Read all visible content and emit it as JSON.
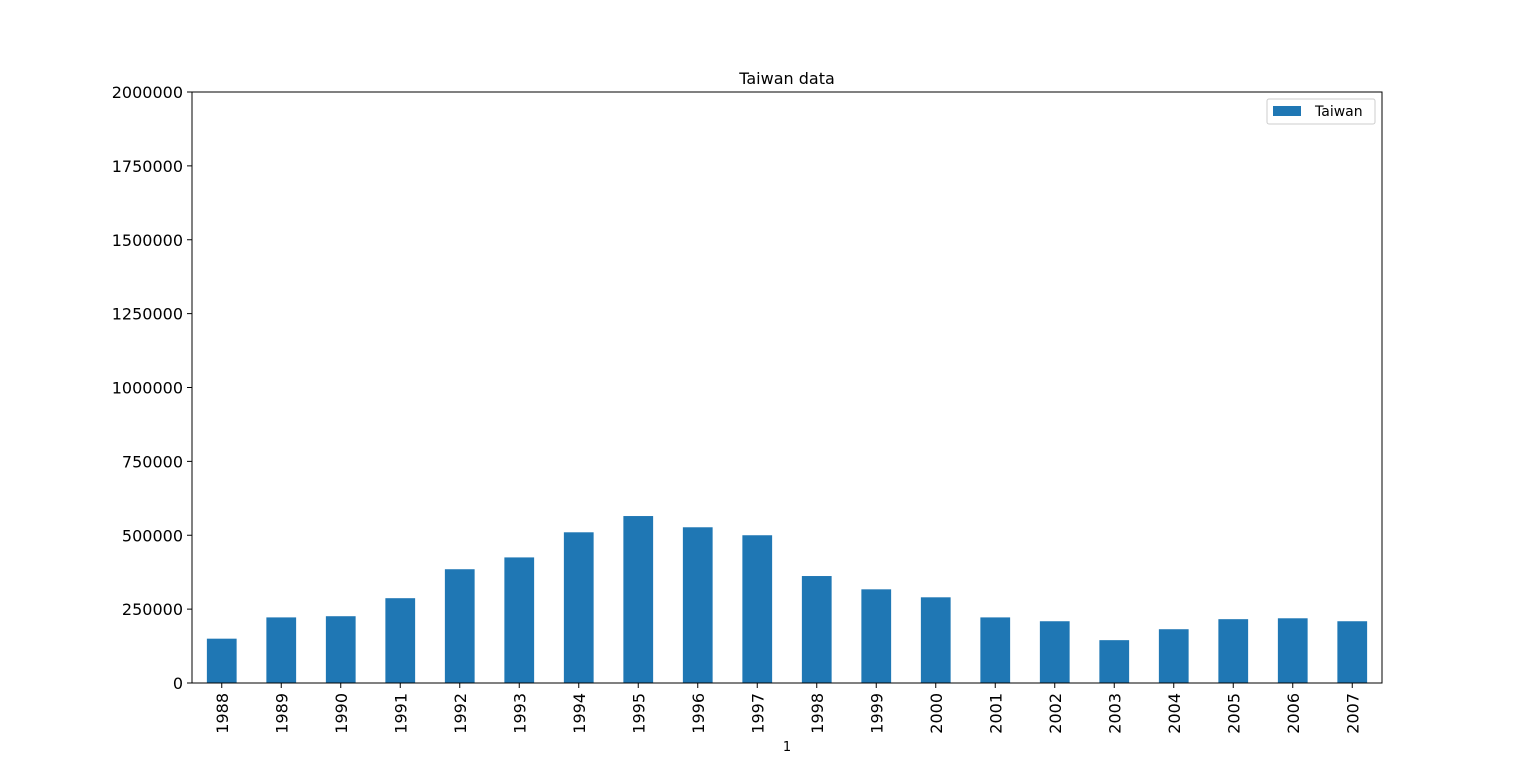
{
  "chart_data": {
    "type": "bar",
    "title": "Taiwan data",
    "xlabel": "1",
    "ylabel": "",
    "categories": [
      "1988",
      "1989",
      "1990",
      "1991",
      "1992",
      "1993",
      "1994",
      "1995",
      "1996",
      "1997",
      "1998",
      "1999",
      "2000",
      "2001",
      "2002",
      "2003",
      "2004",
      "2005",
      "2006",
      "2007"
    ],
    "series": [
      {
        "name": "Taiwan",
        "color": "#1f77b4",
        "values": [
          150000,
          222000,
          226000,
          287000,
          385000,
          425000,
          510000,
          565000,
          527000,
          500000,
          362000,
          317000,
          290000,
          222000,
          209000,
          145000,
          182000,
          216000,
          219000,
          209000
        ]
      }
    ],
    "ylim": [
      0,
      2000000
    ],
    "yticks": [
      0,
      250000,
      500000,
      750000,
      1000000,
      1250000,
      1500000,
      1750000,
      2000000
    ],
    "ytick_labels": [
      "0",
      "250000",
      "500000",
      "750000",
      "1000000",
      "1250000",
      "1500000",
      "1750000",
      "2000000"
    ],
    "legend": {
      "placement": "top-right",
      "entries": [
        "Taiwan"
      ]
    },
    "grid": false
  }
}
